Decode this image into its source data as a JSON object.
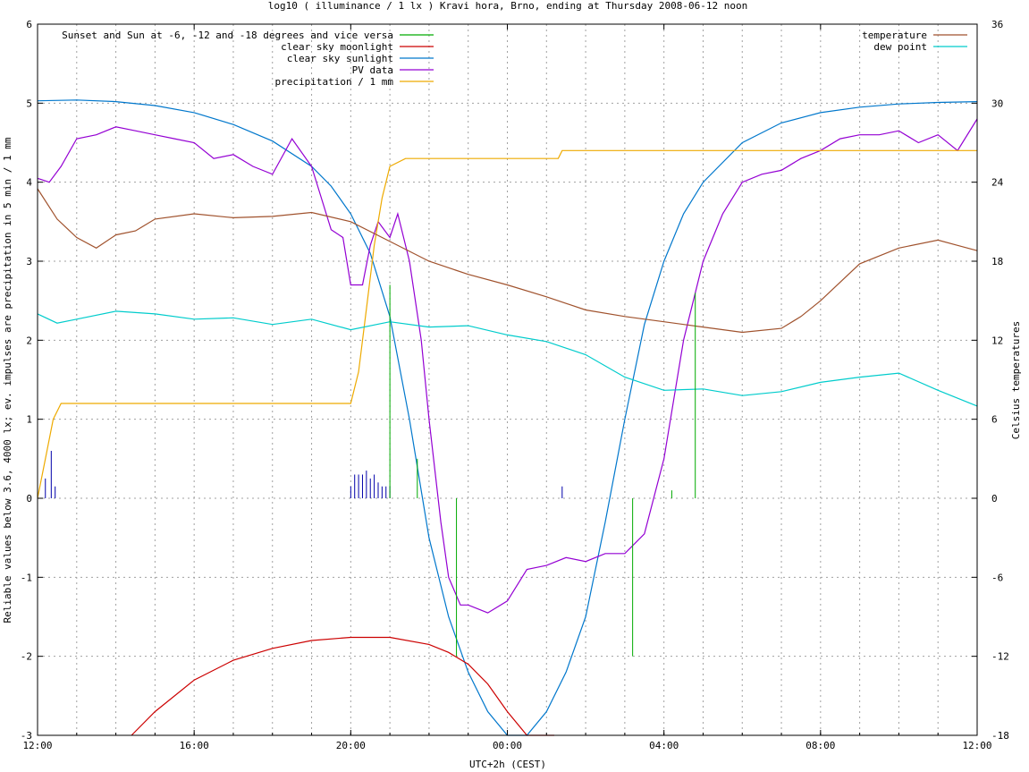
{
  "chart_data": {
    "type": "line",
    "title": "log10 ( illuminance / 1 lx ) Kravi hora, Brno, ending at Thursday 2008-06-12 noon",
    "xlabel": "UTC+2h (CEST)",
    "ylabel": "Reliable values below 3.6, 4000 lx; ev. impulses are precipitation in 5 min / 1 mm",
    "y2label": "Celsius temperatures",
    "x_range_hours": [
      0,
      24
    ],
    "x_ticks": [
      "12:00",
      "16:00",
      "20:00",
      "00:00",
      "04:00",
      "08:00",
      "12:00"
    ],
    "ylim": [
      -3,
      6
    ],
    "y_ticks": [
      "-3",
      "-2",
      "-1",
      "0",
      "1",
      "2",
      "3",
      "4",
      "5",
      "6"
    ],
    "y2lim": [
      -18,
      36
    ],
    "y2_ticks": [
      "-18",
      "-12",
      "-6",
      "0",
      "6",
      "12",
      "18",
      "24",
      "30",
      "36"
    ],
    "grid": true,
    "legend_left": [
      {
        "label": "Sunset and Sun at -6, -12 and -18 degrees and vice versa",
        "color": "#00aa00"
      },
      {
        "label": "clear sky moonlight",
        "color": "#cc0000"
      },
      {
        "label": "clear sky sunlight",
        "color": "#0077cc"
      },
      {
        "label": "PV data",
        "color": "#9400d3"
      },
      {
        "label": "precipitation / 1 mm",
        "color": "#eeaa00"
      }
    ],
    "legend_right": [
      {
        "label": "temperature",
        "color": "#a0522d"
      },
      {
        "label": "dew point",
        "color": "#00cccc"
      }
    ],
    "series": [
      {
        "name": "clear sky sunlight",
        "color": "#0077cc",
        "axis": "left",
        "x": [
          0,
          1,
          2,
          3,
          4,
          5,
          6,
          7,
          7.5,
          8,
          8.5,
          9,
          9.5,
          10,
          10.5,
          11,
          11.5,
          12,
          12.5,
          13,
          13.5,
          14,
          14.5,
          15,
          15.5,
          16,
          16.5,
          17,
          18,
          19,
          20,
          21,
          22,
          23,
          24
        ],
        "y": [
          5.03,
          5.04,
          5.02,
          4.97,
          4.88,
          4.73,
          4.52,
          4.2,
          3.95,
          3.6,
          3.1,
          2.3,
          1.0,
          -0.5,
          -1.5,
          -2.2,
          -2.7,
          -3.0,
          -3.0,
          -2.7,
          -2.2,
          -1.5,
          -0.3,
          1.0,
          2.2,
          3.0,
          3.6,
          4.0,
          4.5,
          4.75,
          4.88,
          4.95,
          4.99,
          5.01,
          5.02
        ]
      },
      {
        "name": "clear sky moonlight",
        "color": "#cc0000",
        "axis": "left",
        "x": [
          2.4,
          3,
          4,
          5,
          6,
          7,
          8,
          9,
          10,
          10.5,
          11,
          11.5,
          12,
          12.5,
          13.2
        ],
        "y": [
          -3.0,
          -2.7,
          -2.3,
          -2.05,
          -1.9,
          -1.8,
          -1.76,
          -1.76,
          -1.85,
          -1.95,
          -2.1,
          -2.35,
          -2.7,
          -3.0,
          -3.0
        ]
      },
      {
        "name": "PV data",
        "color": "#9400d3",
        "axis": "left",
        "x": [
          0,
          0.3,
          0.6,
          1,
          1.5,
          2,
          2.5,
          3,
          3.5,
          4,
          4.5,
          5,
          5.5,
          6,
          6.5,
          7,
          7.5,
          7.8,
          8,
          8.3,
          8.5,
          8.7,
          9,
          9.2,
          9.5,
          9.8,
          10,
          10.3,
          10.5,
          10.8,
          11,
          11.5,
          12,
          12.5,
          13,
          13.5,
          14,
          14.5,
          15,
          15.5,
          16,
          16.5,
          17,
          17.5,
          18,
          18.5,
          19,
          19.5,
          20,
          20.5,
          21,
          21.5,
          22,
          22.5,
          23,
          23.5,
          24
        ],
        "y": [
          4.05,
          4.0,
          4.2,
          4.55,
          4.6,
          4.7,
          4.65,
          4.6,
          4.55,
          4.5,
          4.3,
          4.35,
          4.2,
          4.1,
          4.55,
          4.2,
          3.4,
          3.3,
          2.7,
          2.7,
          3.2,
          3.5,
          3.3,
          3.6,
          3.0,
          2.0,
          1.0,
          -0.3,
          -1.0,
          -1.35,
          -1.35,
          -1.45,
          -1.3,
          -0.9,
          -0.85,
          -0.75,
          -0.8,
          -0.7,
          -0.7,
          -0.45,
          0.5,
          2.0,
          3.0,
          3.6,
          4.0,
          4.1,
          4.15,
          4.3,
          4.4,
          4.55,
          4.6,
          4.6,
          4.65,
          4.5,
          4.6,
          4.4,
          4.8
        ]
      },
      {
        "name": "precipitation / 1 mm",
        "color": "#eeaa00",
        "axis": "left",
        "x": [
          0,
          0.2,
          0.4,
          0.6,
          1,
          2,
          4,
          6,
          8,
          8.2,
          8.4,
          8.6,
          8.8,
          9.0,
          9.4,
          12,
          13,
          13.3,
          13.4,
          14,
          16,
          18,
          20,
          22,
          24
        ],
        "y": [
          0,
          0.5,
          1.0,
          1.2,
          1.2,
          1.2,
          1.2,
          1.2,
          1.2,
          1.6,
          2.4,
          3.2,
          3.8,
          4.2,
          4.3,
          4.3,
          4.3,
          4.3,
          4.4,
          4.4,
          4.4,
          4.4,
          4.4,
          4.4,
          4.4
        ]
      },
      {
        "name": "temperature",
        "color": "#a0522d",
        "axis": "right",
        "x": [
          0,
          0.5,
          1,
          1.5,
          2,
          2.5,
          3,
          4,
          5,
          6,
          7,
          8,
          9,
          10,
          11,
          12,
          13,
          14,
          15,
          16,
          17,
          18,
          19,
          19.5,
          20,
          21,
          22,
          23,
          23.5,
          24
        ],
        "y": [
          23.5,
          21.2,
          19.8,
          19.0,
          20.0,
          20.3,
          21.2,
          21.6,
          21.3,
          21.4,
          21.7,
          21.0,
          19.5,
          18.0,
          17.0,
          16.2,
          15.3,
          14.3,
          13.8,
          13.4,
          13.0,
          12.6,
          12.9,
          13.8,
          15.0,
          17.8,
          19.0,
          19.6,
          19.2,
          18.8
        ]
      },
      {
        "name": "dew point",
        "color": "#00cccc",
        "axis": "right",
        "x": [
          0,
          0.5,
          1,
          2,
          3,
          4,
          5,
          6,
          7,
          8,
          9,
          10,
          11,
          12,
          13,
          14,
          15,
          16,
          17,
          18,
          19,
          20,
          21,
          22,
          23,
          24
        ],
        "y": [
          14.0,
          13.3,
          13.6,
          14.2,
          14.0,
          13.6,
          13.7,
          13.2,
          13.6,
          12.8,
          13.4,
          13.0,
          13.1,
          12.4,
          11.9,
          10.9,
          9.2,
          8.2,
          8.3,
          7.8,
          8.1,
          8.8,
          9.2,
          9.5,
          8.2,
          7.0
        ]
      },
      {
        "name": "Sunset and Sun at -6, -12 and -18 degrees and vice versa",
        "color": "#00aa00",
        "axis": "left",
        "type": "impulse",
        "impulses": [
          {
            "x": 9.0,
            "y": 2.7
          },
          {
            "x": 9.7,
            "y": 0.5
          },
          {
            "x": 10.7,
            "y": -2.0
          },
          {
            "x": 15.2,
            "y": -2.0
          },
          {
            "x": 16.2,
            "y": 0.1
          },
          {
            "x": 16.8,
            "y": 2.6
          }
        ]
      }
    ],
    "rain_impulses": {
      "color": "#0000aa",
      "x": [
        0.2,
        0.35,
        0.45,
        8.0,
        8.1,
        8.2,
        8.3,
        8.4,
        8.5,
        8.6,
        8.7,
        8.8,
        8.9,
        9.0,
        13.4
      ],
      "y": [
        0.25,
        0.6,
        0.15,
        0.15,
        0.3,
        0.3,
        0.3,
        0.35,
        0.25,
        0.3,
        0.2,
        0.15,
        0.15,
        0.15,
        0.15
      ]
    }
  }
}
